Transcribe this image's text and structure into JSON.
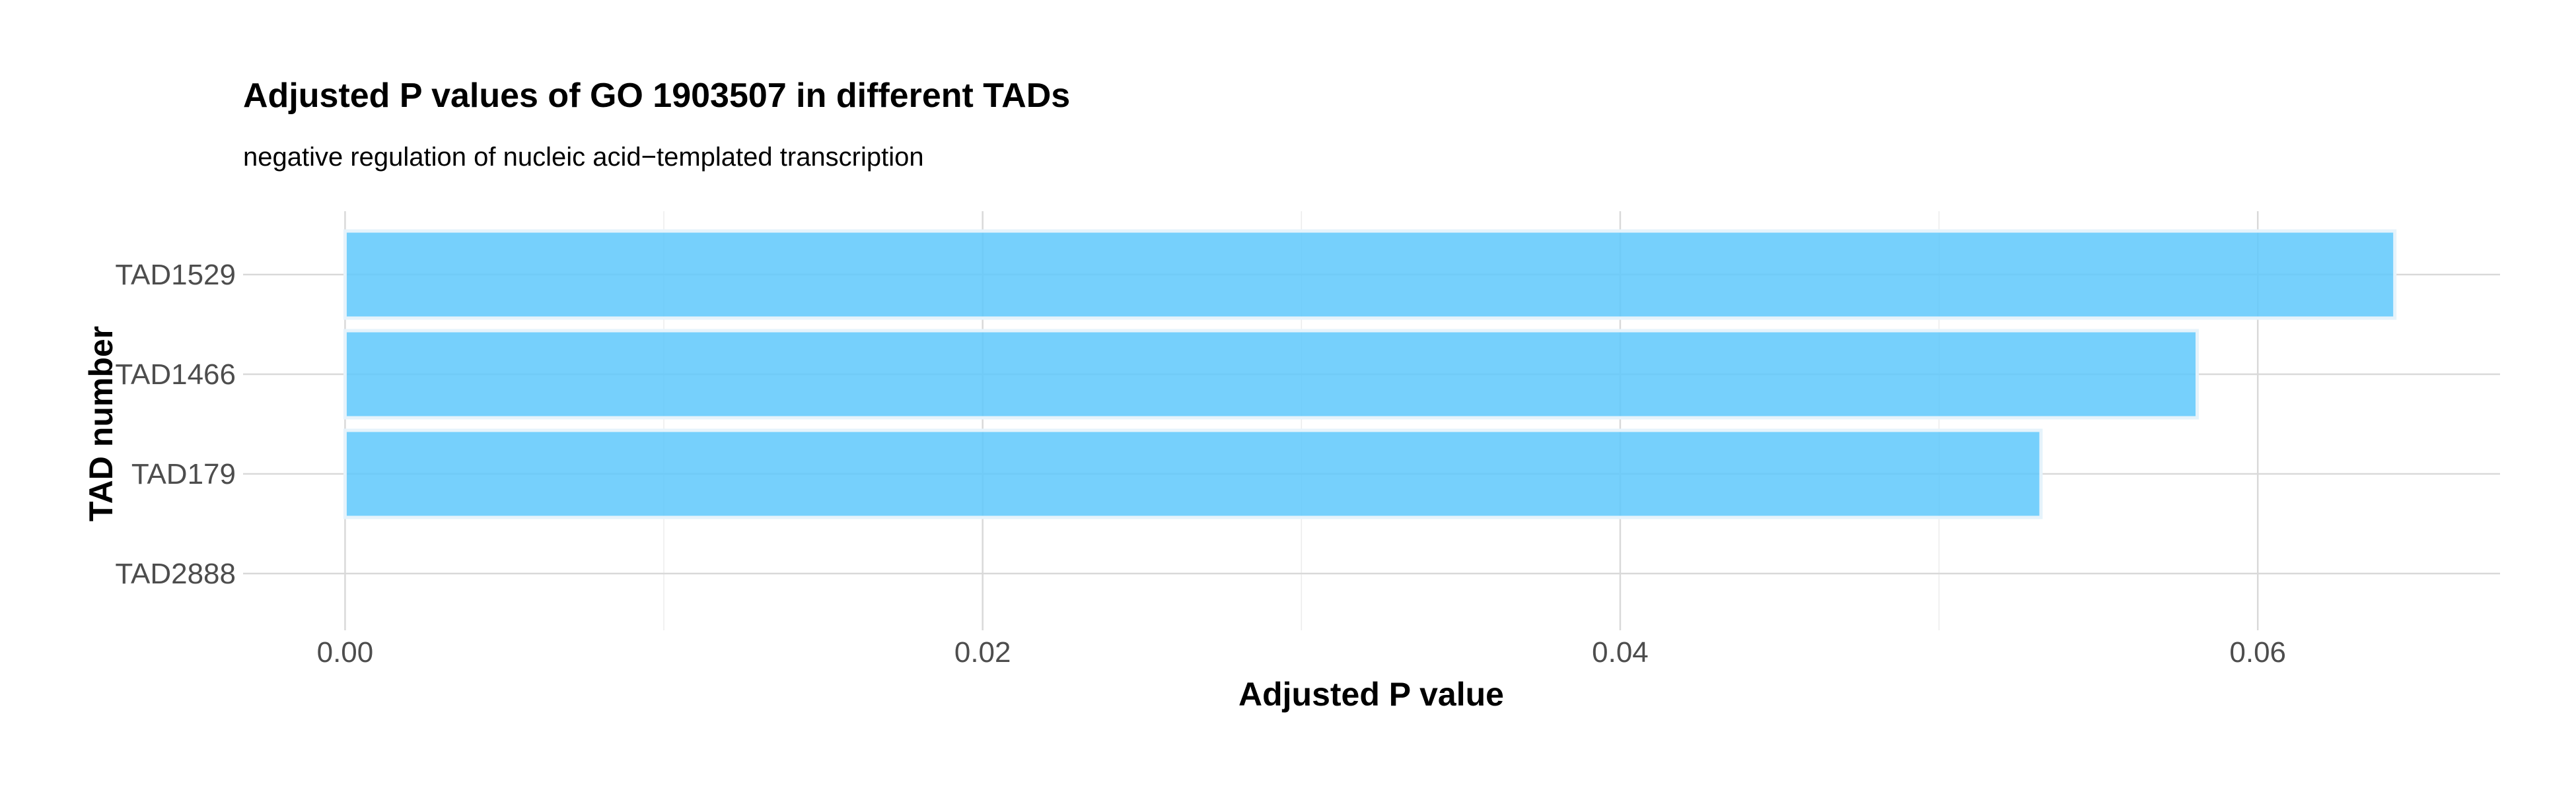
{
  "chart_data": {
    "type": "bar",
    "orientation": "horizontal",
    "title": "Adjusted P values of GO 1903507 in different TADs",
    "subtitle": "negative regulation of nucleic acid−templated transcription",
    "xlabel": "Adjusted P value",
    "ylabel": "TAD number",
    "categories": [
      "TAD1529",
      "TAD1466",
      "TAD179",
      "TAD2888"
    ],
    "values": [
      0.0643,
      0.0581,
      0.0532,
      0.0
    ],
    "xlim": [
      -0.0032,
      0.0676
    ],
    "xticks": [
      0.0,
      0.02,
      0.04,
      0.06
    ],
    "xtick_labels": [
      "0.00",
      "0.02",
      "0.04",
      "0.06"
    ],
    "grid": true,
    "bar_color": "#5ec8fb",
    "bar_border_color": "#e6f3fb"
  }
}
